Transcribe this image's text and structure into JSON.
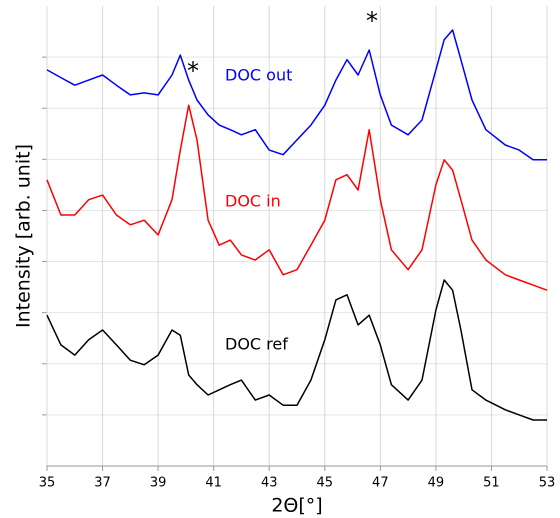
{
  "chart_data": {
    "type": "line",
    "x_label": "2Θ[°]",
    "y_label": "Intensity [arb. unit]",
    "annotations": [
      "*",
      "*"
    ],
    "x": [
      35,
      35.5,
      36,
      36.5,
      37,
      37.5,
      38,
      38.5,
      39,
      39.5,
      39.8,
      40.1,
      40.4,
      40.8,
      41.2,
      41.6,
      42,
      42.5,
      43,
      43.5,
      44,
      44.5,
      45,
      45.4,
      45.8,
      46.2,
      46.6,
      47,
      47.4,
      48,
      48.5,
      49,
      49.3,
      49.6,
      49.9,
      50.3,
      50.8,
      51.5,
      52,
      52.5,
      53
    ],
    "series": [
      {
        "name": "DOC out",
        "color": "#0000ff",
        "values": [
          7.75,
          7.6,
          7.45,
          7.55,
          7.65,
          7.45,
          7.26,
          7.3,
          7.26,
          7.65,
          8.04,
          7.55,
          7.16,
          6.87,
          6.67,
          6.58,
          6.48,
          6.58,
          6.18,
          6.09,
          6.38,
          6.67,
          7.06,
          7.55,
          7.95,
          7.65,
          8.14,
          7.26,
          6.67,
          6.48,
          6.77,
          7.75,
          8.34,
          8.53,
          7.95,
          7.16,
          6.58,
          6.28,
          6.18,
          5.99,
          5.99
        ]
      },
      {
        "name": "DOC in",
        "color": "#ff0000",
        "values": [
          5.6,
          4.91,
          4.91,
          5.21,
          5.3,
          4.91,
          4.72,
          4.81,
          4.52,
          5.21,
          6.18,
          7.06,
          6.38,
          4.81,
          4.32,
          4.42,
          4.13,
          4.03,
          4.23,
          3.74,
          3.84,
          4.32,
          4.81,
          5.6,
          5.7,
          5.4,
          6.58,
          5.21,
          4.23,
          3.84,
          4.23,
          5.5,
          5.99,
          5.79,
          5.21,
          4.42,
          4.03,
          3.74,
          3.64,
          3.54,
          3.44
        ]
      },
      {
        "name": "DOC ref",
        "color": "#000000",
        "values": [
          2.95,
          2.37,
          2.17,
          2.47,
          2.66,
          2.37,
          2.07,
          1.98,
          2.17,
          2.66,
          2.56,
          1.78,
          1.59,
          1.39,
          1.49,
          1.59,
          1.68,
          1.29,
          1.39,
          1.19,
          1.19,
          1.68,
          2.47,
          3.25,
          3.35,
          2.76,
          2.95,
          2.37,
          1.59,
          1.29,
          1.68,
          3.05,
          3.64,
          3.44,
          2.66,
          1.49,
          1.29,
          1.1,
          1.0,
          0.9,
          0.9
        ]
      }
    ],
    "xlim": [
      35,
      53
    ],
    "xticks": [
      35,
      37,
      39,
      41,
      43,
      45,
      47,
      49,
      51,
      53
    ],
    "ylim": [
      0,
      9
    ],
    "yticks": [
      1,
      2,
      3,
      4,
      5,
      6,
      7,
      8
    ],
    "grid": true
  }
}
